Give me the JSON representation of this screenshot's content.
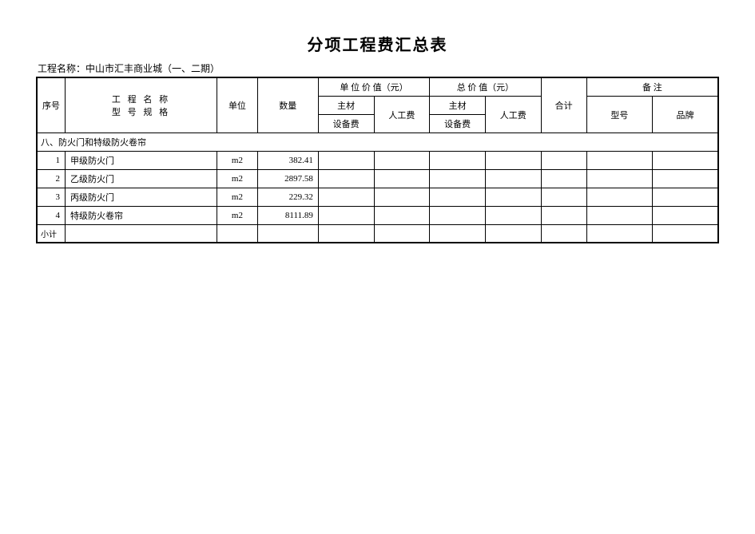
{
  "title": "分项工程费汇总表",
  "project_label": "工程名称：中山市汇丰商业城（一、二期）",
  "headers": {
    "seq": "序号",
    "name_line1": "工 程 名 称",
    "name_line2": "型 号 规 格",
    "unit": "单位",
    "qty": "数量",
    "unit_value": "单 位 价 值（元）",
    "total_value": "总 价 值（元）",
    "main_material": "主材",
    "equipment_fee": "设备费",
    "labor_fee": "人工费",
    "grand_total": "合计",
    "remarks": "备 注",
    "model": "型号",
    "brand": "品牌"
  },
  "section_title": "八、防火门和特级防火卷帘",
  "rows": [
    {
      "seq": "1",
      "name": "甲级防火门",
      "unit": "m2",
      "qty": "382.41"
    },
    {
      "seq": "2",
      "name": "乙级防火门",
      "unit": "m2",
      "qty": "2897.58"
    },
    {
      "seq": "3",
      "name": "丙级防火门",
      "unit": "m2",
      "qty": "229.32"
    },
    {
      "seq": "4",
      "name": "特级防火卷帘",
      "unit": "m2",
      "qty": "8111.89"
    }
  ],
  "subtotal_label": "小计"
}
